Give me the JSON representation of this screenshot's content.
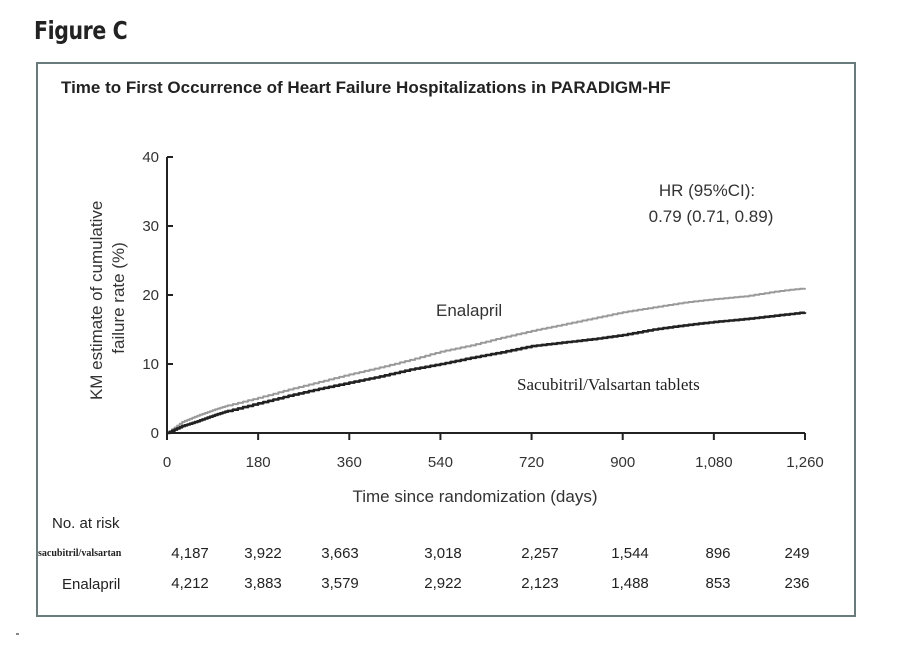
{
  "figure_label": "Figure C",
  "chart_data": {
    "type": "line",
    "title": "Time to First Occurrence of Heart Failure Hospitalizations in PARADIGM-HF",
    "xlabel": "Time since randomization (days)",
    "ylabel": "KM estimate of cumulative failure rate (%)",
    "xlim": [
      0,
      1260
    ],
    "ylim": [
      0,
      40
    ],
    "x_ticks": [
      0,
      180,
      360,
      540,
      720,
      900,
      1080,
      1260
    ],
    "x_tick_labels": [
      "0",
      "180",
      "360",
      "540",
      "720",
      "900",
      "1,080",
      "1,260"
    ],
    "y_ticks": [
      0,
      10,
      20,
      30,
      40
    ],
    "y_tick_labels": [
      "0",
      "10",
      "20",
      "30",
      "40"
    ],
    "grid": false,
    "annotation": {
      "line1": "HR (95%CI):",
      "line2": "0.79 (0.71, 0.89)"
    },
    "series": [
      {
        "name": "Enalapril",
        "color": "#9a9a9a",
        "x": [
          0,
          30,
          60,
          90,
          120,
          180,
          240,
          300,
          360,
          420,
          480,
          540,
          600,
          660,
          720,
          780,
          840,
          900,
          960,
          1020,
          1080,
          1140,
          1200,
          1260
        ],
        "y": [
          0,
          1.6,
          2.5,
          3.3,
          4.0,
          5.1,
          6.3,
          7.4,
          8.5,
          9.5,
          10.6,
          11.8,
          12.7,
          13.8,
          14.8,
          15.7,
          16.6,
          17.5,
          18.2,
          18.9,
          19.4,
          19.8,
          20.5,
          21.0
        ]
      },
      {
        "name": "Sacubitril/Valsartan tablets",
        "color": "#222222",
        "x": [
          0,
          30,
          60,
          90,
          120,
          180,
          240,
          300,
          360,
          420,
          480,
          540,
          600,
          660,
          720,
          780,
          840,
          900,
          960,
          1020,
          1080,
          1140,
          1200,
          1260
        ],
        "y": [
          0,
          1.0,
          1.7,
          2.5,
          3.2,
          4.3,
          5.4,
          6.4,
          7.3,
          8.2,
          9.2,
          10.0,
          10.9,
          11.7,
          12.6,
          13.1,
          13.6,
          14.2,
          15.0,
          15.6,
          16.1,
          16.5,
          17.0,
          17.5
        ]
      }
    ],
    "series_labels": {
      "enalapril": "Enalapril",
      "sacubitril": "Sacubitril/Valsartan tablets"
    },
    "risk_table": {
      "header": "No. at risk",
      "rows": [
        {
          "label": "sacubitril/valsartan",
          "values": [
            "4,187",
            "3,922",
            "3,663",
            "3,018",
            "2,257",
            "1,544",
            "896",
            "249"
          ]
        },
        {
          "label": "Enalapril",
          "values": [
            "4,212",
            "3,883",
            "3,579",
            "2,922",
            "2,123",
            "1,488",
            "853",
            "236"
          ]
        }
      ]
    }
  }
}
